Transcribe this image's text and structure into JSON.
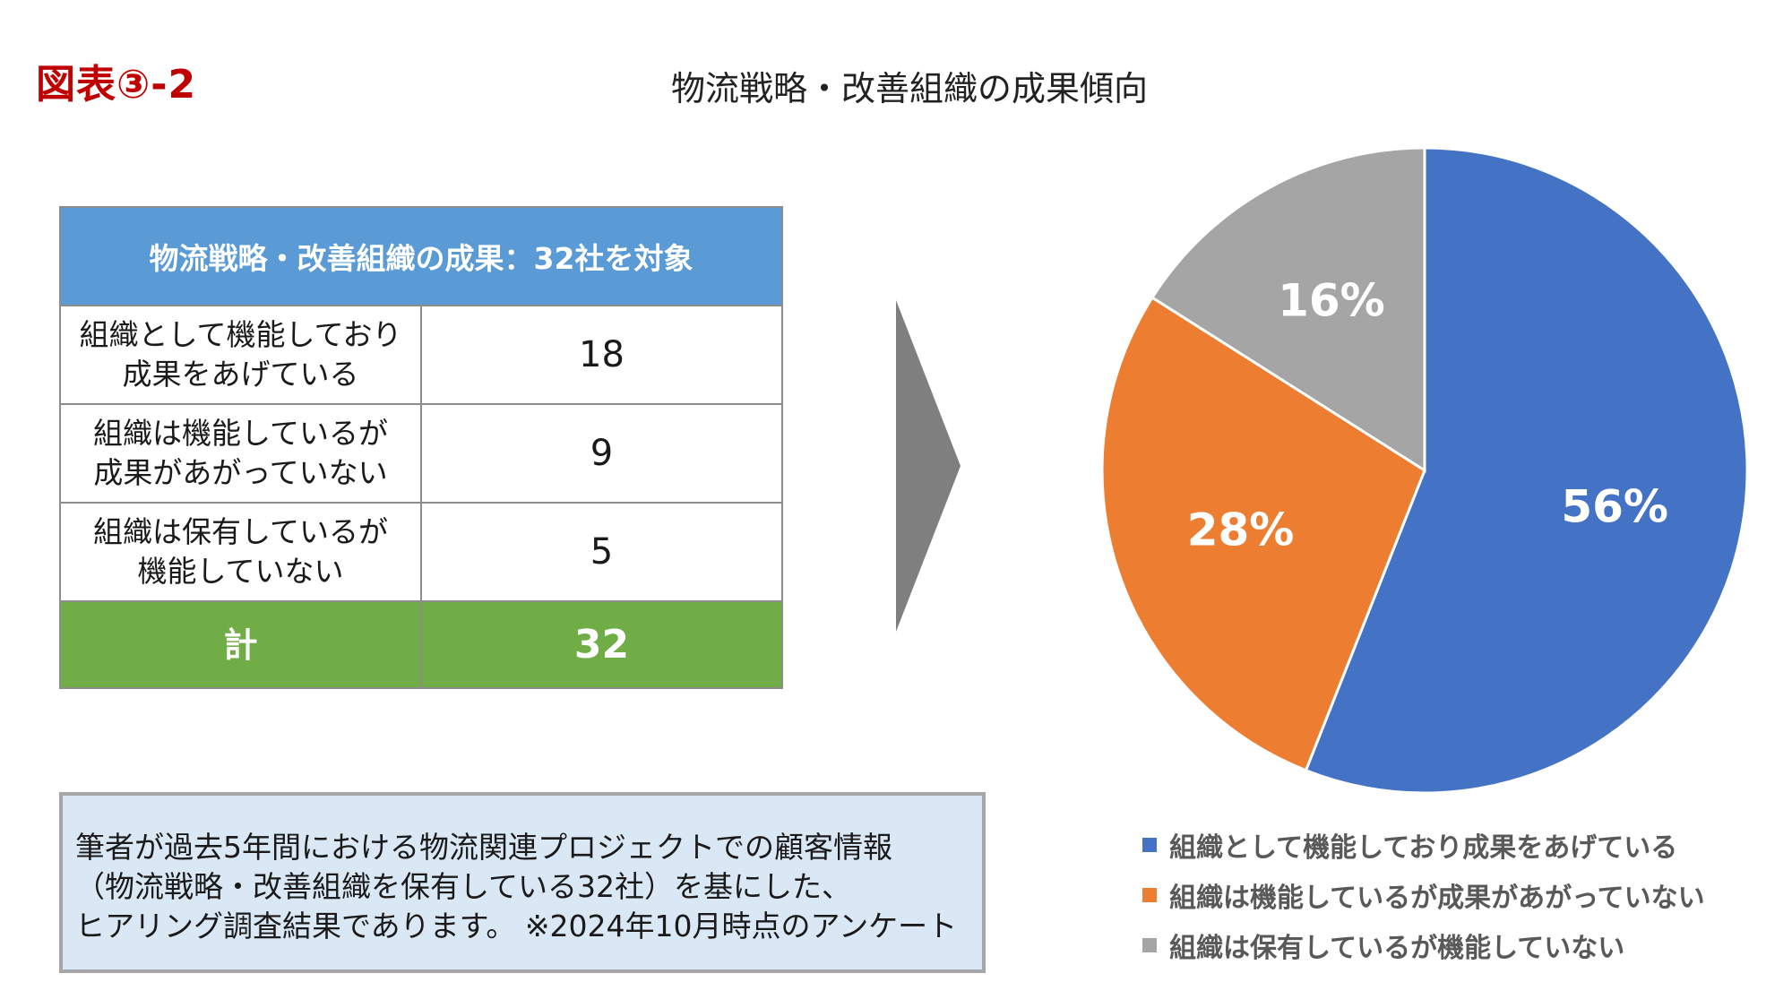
{
  "figure_label": "図表③-2",
  "page_title": "物流戦略・改善組織の成果傾向",
  "table": {
    "header": "物流戦略・改善組織の成果：32社を対象",
    "rows": [
      {
        "line1": "組織として機能しており",
        "line2": "成果をあげている",
        "count": "18"
      },
      {
        "line1": "組織は機能しているが",
        "line2": "成果があがっていない",
        "count": "9"
      },
      {
        "line1": "組織は保有しているが",
        "line2": "機能していない",
        "count": "5"
      }
    ],
    "total_label": "計",
    "total_value": "32"
  },
  "note": {
    "line1": "筆者が過去5年間における物流関連プロジェクトでの顧客情報",
    "line2": "（物流戦略・改善組織を保有している32社）を基にした、",
    "line3": "ヒアリング調査結果であります。 ※2024年10月時点のアンケート"
  },
  "chart_data": {
    "type": "pie",
    "categories": [
      "組織として機能しており成果をあげている",
      "組織は機能しているが成果があがっていない",
      "組織は保有しているが機能していない"
    ],
    "values": [
      56,
      28,
      16
    ],
    "labels": [
      "56%",
      "28%",
      "16%"
    ],
    "colors": [
      "#4472c4",
      "#ed7d31",
      "#a5a5a5"
    ],
    "legend_position": "bottom"
  },
  "colors": {
    "figure_label": "#c00000",
    "table_header": "#5b9bd5",
    "table_total": "#70ad47",
    "arrow": "#7f7f7f",
    "note_background": "#dae7f5"
  }
}
